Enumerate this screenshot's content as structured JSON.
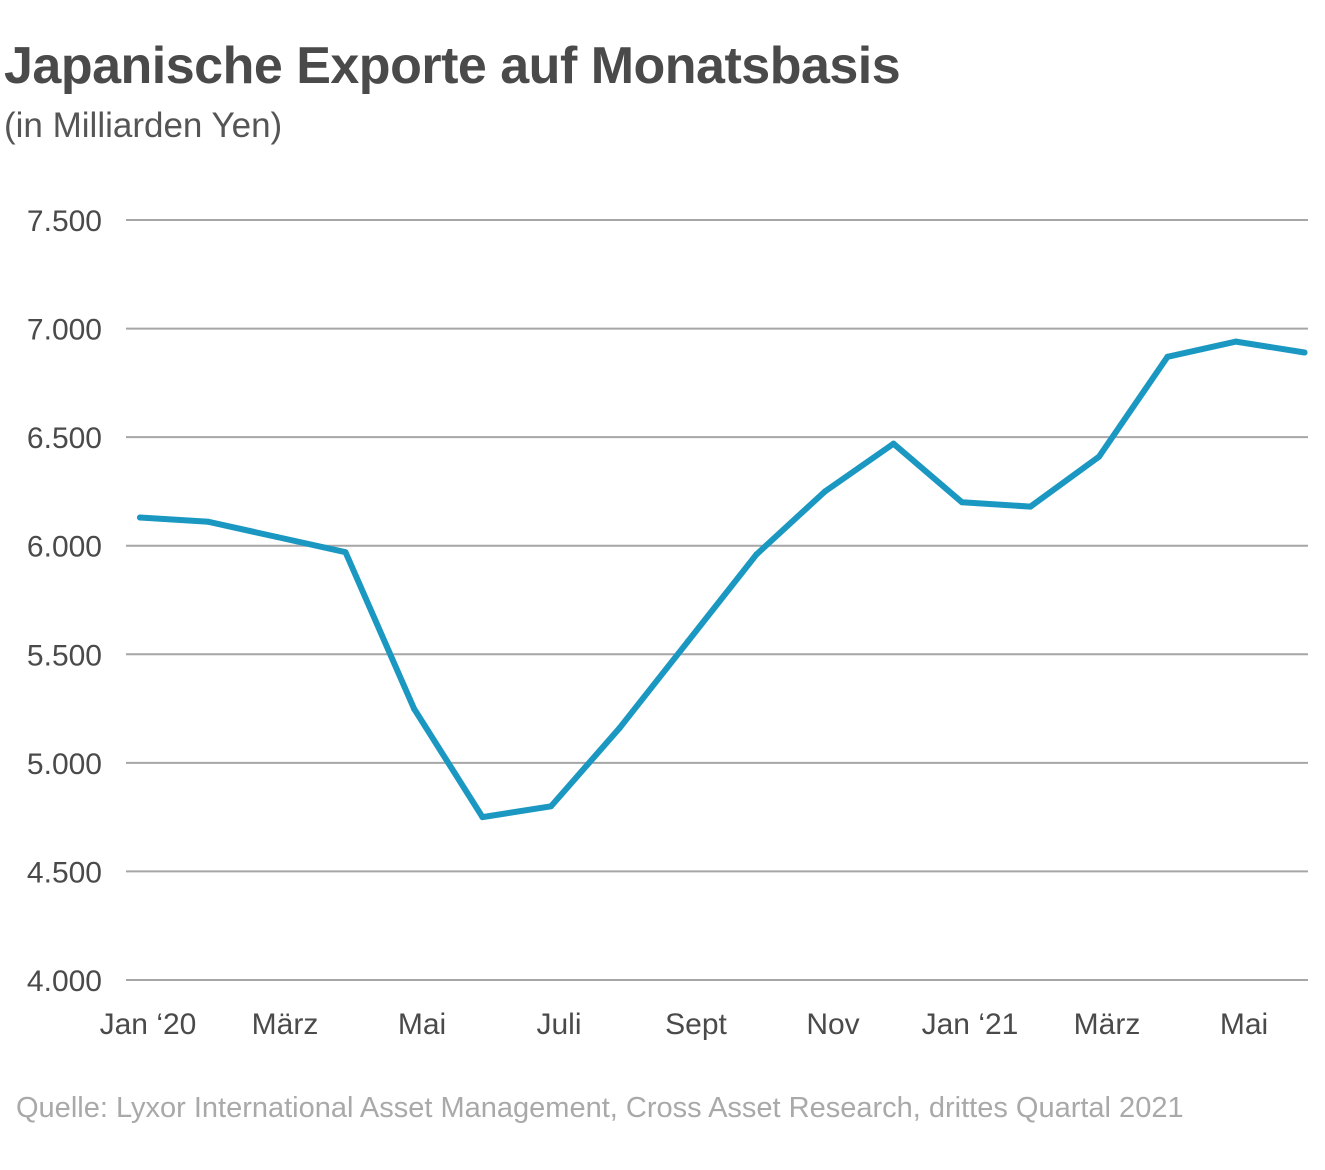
{
  "header": {
    "title": "Japanische Exporte auf Monatsbasis",
    "subtitle": "(in Milliarden Yen)"
  },
  "source": "Quelle: Lyxor International Asset Management, Cross Asset Research, drittes Quartal 2021",
  "colors": {
    "line": "#1b98c1",
    "grid": "#a6a6a6",
    "tick_text": "#4a4a4a"
  },
  "chart_data": {
    "type": "line",
    "title": "Japanische Exporte auf Monatsbasis",
    "subtitle": "(in Milliarden Yen)",
    "xlabel": "",
    "ylabel": "",
    "ylim": [
      4000,
      7500
    ],
    "y_ticks": [
      4000,
      4500,
      5000,
      5500,
      6000,
      6500,
      7000,
      7500
    ],
    "y_tick_labels": [
      "4.000",
      "4.500",
      "5.000",
      "5.500",
      "6.000",
      "6.500",
      "7.000",
      "7.500"
    ],
    "x": [
      "Jan 2020",
      "Feb 2020",
      "Mär 2020",
      "Apr 2020",
      "Mai 2020",
      "Jun 2020",
      "Jul 2020",
      "Aug 2020",
      "Sep 2020",
      "Okt 2020",
      "Nov 2020",
      "Dez 2020",
      "Jan 2021",
      "Feb 2021",
      "Mär 2021",
      "Apr 2021",
      "Mai 2021",
      "Jun 2021"
    ],
    "x_tick_labels": [
      {
        "month_index": 0,
        "label": "Jan ‘20"
      },
      {
        "month_index": 2,
        "label": "März"
      },
      {
        "month_index": 4,
        "label": "Mai"
      },
      {
        "month_index": 6,
        "label": "Juli"
      },
      {
        "month_index": 8,
        "label": "Sept"
      },
      {
        "month_index": 10,
        "label": "Nov"
      },
      {
        "month_index": 12,
        "label": "Jan ‘21"
      },
      {
        "month_index": 14,
        "label": "März"
      },
      {
        "month_index": 16,
        "label": "Mai"
      }
    ],
    "series": [
      {
        "values": [
          6130,
          6110,
          6040,
          5970,
          5250,
          4750,
          4800,
          5160,
          5560,
          5960,
          6250,
          6470,
          6200,
          6180,
          6410,
          6870,
          6940,
          6890
        ]
      }
    ],
    "grid": true,
    "legend": "none"
  }
}
